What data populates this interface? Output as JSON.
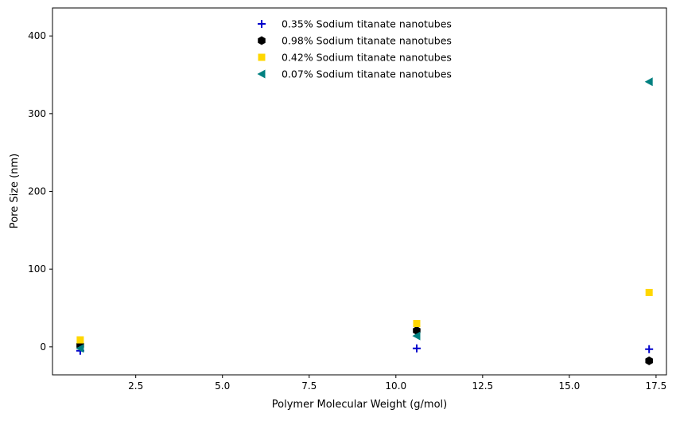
{
  "chart_data": {
    "type": "scatter",
    "title": "",
    "xlabel": "Polymer Molecular Weight (g/mol)",
    "ylabel": "Pore Size (nm)",
    "xlim": [
      0.1,
      17.8
    ],
    "ylim": [
      -36,
      436
    ],
    "xticks": [
      2.5,
      5.0,
      7.5,
      10.0,
      12.5,
      15.0,
      17.5
    ],
    "xtick_labels": [
      "2.5",
      "5.0",
      "7.5",
      "10.0",
      "12.5",
      "15.0",
      "17.5"
    ],
    "yticks": [
      0,
      100,
      200,
      300,
      400
    ],
    "ytick_labels": [
      "0",
      "100",
      "200",
      "300",
      "400"
    ],
    "grid": false,
    "legend_position": "top-center",
    "series": [
      {
        "name": "0.35% Sodium titanate nanotubes",
        "marker": "plus",
        "color": "#0000cc",
        "points": [
          {
            "x": 0.9,
            "y": -5
          },
          {
            "x": 10.6,
            "y": -2
          },
          {
            "x": 17.3,
            "y": -3
          }
        ]
      },
      {
        "name": "0.98% Sodium titanate nanotubes",
        "marker": "hexagon",
        "color": "#000000",
        "points": [
          {
            "x": 0.9,
            "y": 2
          },
          {
            "x": 10.6,
            "y": 21
          },
          {
            "x": 17.3,
            "y": -18
          }
        ]
      },
      {
        "name": "0.42% Sodium titanate nanotubes",
        "marker": "square",
        "color": "#ffd700",
        "points": [
          {
            "x": 0.9,
            "y": 9
          },
          {
            "x": 10.6,
            "y": 30
          },
          {
            "x": 17.3,
            "y": 70
          }
        ]
      },
      {
        "name": "0.07% Sodium titanate nanotubes",
        "marker": "triangle-left",
        "color": "#008080",
        "points": [
          {
            "x": 0.9,
            "y": -2
          },
          {
            "x": 10.6,
            "y": 14
          },
          {
            "x": 17.3,
            "y": 341
          }
        ]
      }
    ]
  }
}
